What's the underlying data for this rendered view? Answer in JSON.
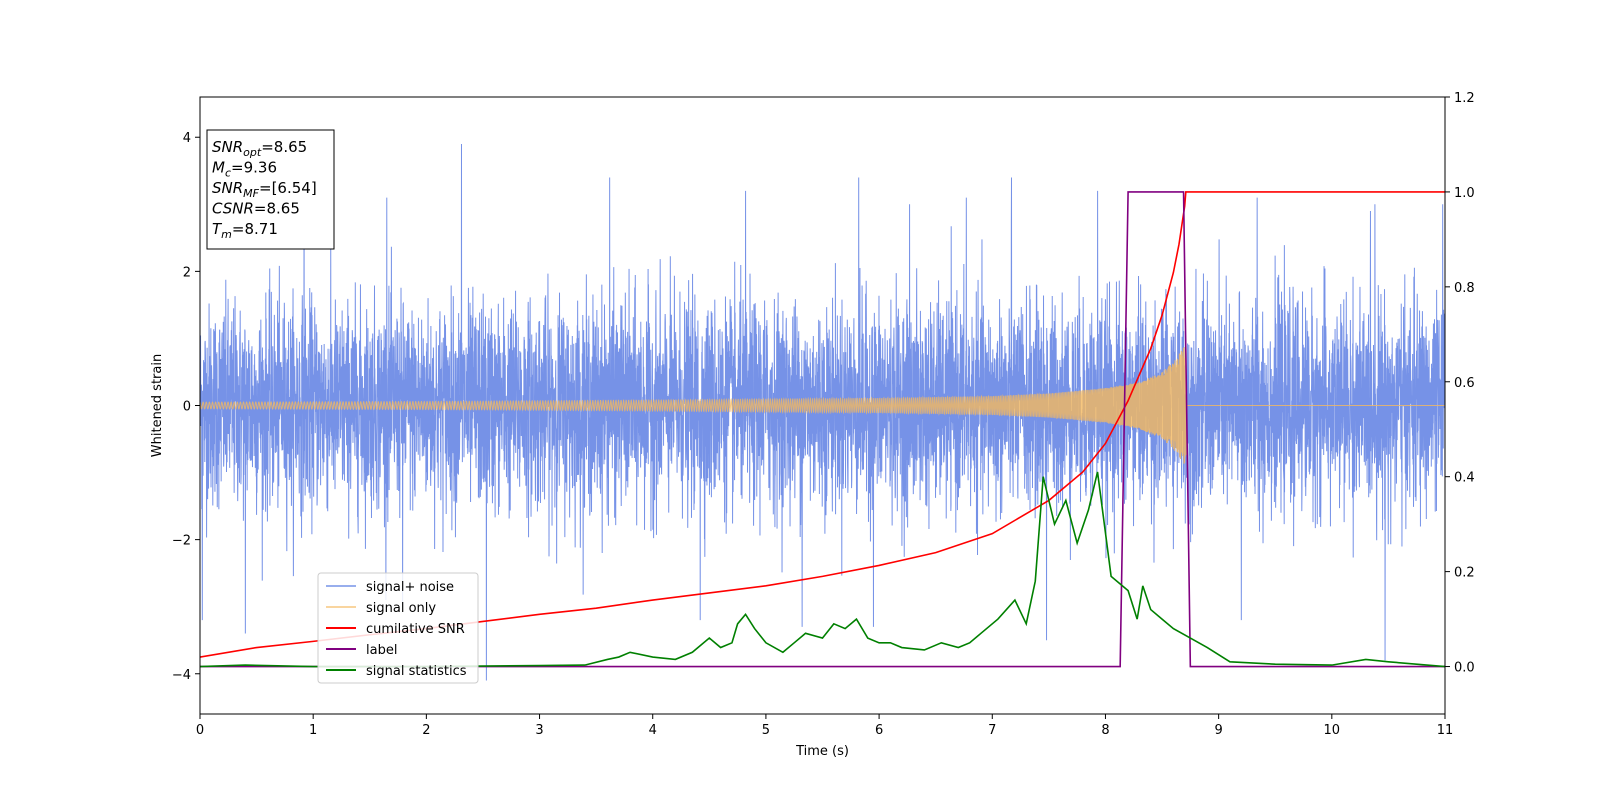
{
  "chart_data": {
    "type": "line",
    "xlabel": "Time (s)",
    "ylabel": "Whitened strain",
    "xlim": [
      0,
      11
    ],
    "ylim": [
      -4.6,
      4.6
    ],
    "y2lim": [
      -0.1,
      1.2
    ],
    "grid": false,
    "legend_position": "lower-left",
    "x_ticks": [
      "0",
      "1",
      "2",
      "3",
      "4",
      "5",
      "6",
      "7",
      "8",
      "9",
      "10",
      "11"
    ],
    "y_ticks": [
      "−4",
      "−2",
      "0",
      "2",
      "4"
    ],
    "y2_ticks": [
      "0.0",
      "0.2",
      "0.4",
      "0.6",
      "0.8",
      "1.0",
      "1.2"
    ],
    "annotation": {
      "lines": [
        {
          "main": "SNR",
          "sub": "opt",
          "value": "=8.65"
        },
        {
          "main": "M",
          "sub": "c",
          "value": "=9.36"
        },
        {
          "main": "SNR",
          "sub": "MF",
          "value": "=[6.54]"
        },
        {
          "main": "CSNR",
          "sub": "",
          "value": "=8.65"
        },
        {
          "main": "T",
          "sub": "m",
          "value": "=8.71"
        }
      ]
    },
    "series": [
      {
        "name": "signal+ noise",
        "color": "#6F8CE6",
        "axis": "left",
        "kind": "noise",
        "typical_abs_amplitude": 1.2,
        "x": [
          0.02,
          0.92,
          1.65,
          2.31,
          3.62,
          4.82,
          5.82,
          6.27,
          6.77,
          7.17,
          7.93,
          9.34,
          10.38,
          10.98
        ],
        "peaks": [
          3.6,
          4.1,
          3.1,
          3.9,
          3.4,
          3.2,
          3.4,
          3.0,
          3.1,
          3.4,
          3.2,
          3.1,
          3.0,
          3.0
        ],
        "troughs_x": [
          0.02,
          0.4,
          1.79,
          2.53,
          4.42,
          5.32,
          5.95,
          7.48,
          9.2,
          10.47
        ],
        "troughs": [
          -3.2,
          -3.4,
          -3.0,
          -4.1,
          -3.2,
          -3.3,
          -3.3,
          -3.5,
          -3.2,
          -3.8
        ]
      },
      {
        "name": "signal only",
        "color": "#F5B95F",
        "axis": "left",
        "kind": "chirp",
        "envelope_x": [
          0,
          2,
          4,
          6,
          7,
          7.5,
          8,
          8.3,
          8.5,
          8.6,
          8.68,
          8.71,
          8.72,
          11
        ],
        "envelope": [
          0.05,
          0.06,
          0.08,
          0.11,
          0.14,
          0.18,
          0.26,
          0.35,
          0.5,
          0.65,
          0.85,
          0.9,
          0,
          0
        ]
      },
      {
        "name": "cumilative SNR",
        "color": "#FF0000",
        "axis": "right",
        "x": [
          0,
          0.5,
          1,
          1.5,
          2,
          2.5,
          3,
          3.5,
          4,
          4.5,
          5,
          5.5,
          6,
          6.5,
          7,
          7.5,
          7.8,
          8,
          8.2,
          8.4,
          8.5,
          8.6,
          8.65,
          8.7,
          8.71,
          9,
          10,
          11
        ],
        "values": [
          0.02,
          0.04,
          0.053,
          0.067,
          0.08,
          0.095,
          0.11,
          0.123,
          0.14,
          0.155,
          0.17,
          0.19,
          0.213,
          0.24,
          0.28,
          0.35,
          0.41,
          0.47,
          0.56,
          0.67,
          0.74,
          0.83,
          0.89,
          0.97,
          1.0,
          1.0,
          1.0,
          1.0
        ]
      },
      {
        "name": "label",
        "color": "#800080",
        "axis": "right",
        "x": [
          0,
          8.13,
          8.2,
          8.69,
          8.75,
          11
        ],
        "values": [
          0,
          0,
          1,
          1,
          0,
          0
        ]
      },
      {
        "name": "signal statistics",
        "color": "#008000",
        "axis": "right",
        "x": [
          0,
          0.4,
          1,
          2,
          3,
          3.4,
          3.6,
          3.7,
          3.8,
          4.0,
          4.2,
          4.35,
          4.5,
          4.6,
          4.7,
          4.75,
          4.82,
          4.9,
          5.0,
          5.15,
          5.25,
          5.35,
          5.5,
          5.6,
          5.7,
          5.8,
          5.9,
          6.0,
          6.1,
          6.2,
          6.4,
          6.55,
          6.7,
          6.8,
          6.9,
          7.05,
          7.2,
          7.3,
          7.38,
          7.45,
          7.55,
          7.65,
          7.75,
          7.85,
          7.93,
          8.05,
          8.2,
          8.28,
          8.33,
          8.4,
          8.5,
          8.6,
          8.75,
          8.9,
          9.1,
          9.5,
          10,
          10.3,
          10.5,
          11
        ],
        "values": [
          0.0,
          0.003,
          0.0,
          0.0,
          0.002,
          0.003,
          0.015,
          0.02,
          0.03,
          0.02,
          0.015,
          0.03,
          0.06,
          0.04,
          0.05,
          0.09,
          0.11,
          0.08,
          0.05,
          0.03,
          0.05,
          0.07,
          0.06,
          0.09,
          0.08,
          0.1,
          0.06,
          0.05,
          0.05,
          0.04,
          0.035,
          0.05,
          0.04,
          0.05,
          0.07,
          0.1,
          0.14,
          0.09,
          0.18,
          0.4,
          0.3,
          0.35,
          0.26,
          0.33,
          0.41,
          0.19,
          0.16,
          0.1,
          0.17,
          0.12,
          0.1,
          0.08,
          0.06,
          0.04,
          0.01,
          0.005,
          0.003,
          0.015,
          0.01,
          0.0
        ]
      }
    ]
  }
}
